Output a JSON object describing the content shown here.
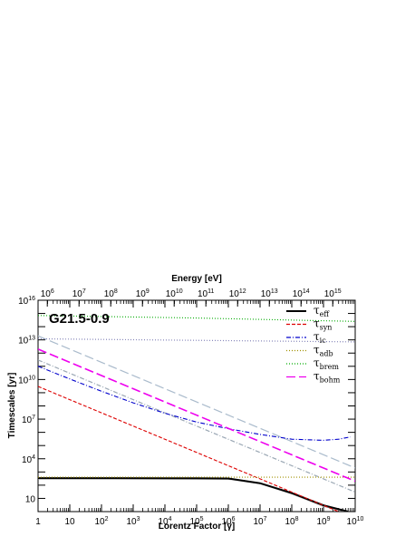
{
  "chart_data": {
    "type": "line",
    "title": "G21.5-0.9",
    "xlabel": "Lorentz Factor [γ]",
    "ylabel": "Timescales [yr]",
    "top_axis_label": "Energy [eV]",
    "x_scale": "log",
    "y_scale": "log",
    "xlim": [
      1,
      10000000000
    ],
    "ylim": [
      1,
      10000000000000000
    ],
    "x_tick_labels": [
      "1",
      "10",
      "10^2",
      "10^3",
      "10^4",
      "10^5",
      "10^6",
      "10^7",
      "10^8",
      "10^9",
      "10^10"
    ],
    "y_tick_labels": [
      "10",
      "10^4",
      "10^7",
      "10^10",
      "10^13",
      "10^16"
    ],
    "top_tick_labels": [
      "10^6",
      "10^7",
      "10^8",
      "10^9",
      "10^10",
      "10^11",
      "10^12",
      "10^13",
      "10^14",
      "10^15"
    ],
    "grid": false,
    "legend_position": "top-right",
    "series": [
      {
        "name": "eff",
        "color": "#000000",
        "style": "solid",
        "x": [
          1,
          10000,
          100000,
          1000000,
          10000000,
          100000000,
          1000000000,
          6000000000
        ],
        "y": [
          340,
          338,
          335,
          320,
          140,
          25,
          3,
          1
        ]
      },
      {
        "name": "syn",
        "color": "#dd0000",
        "style": "dashed",
        "x": [
          1,
          10,
          100,
          1000,
          10000,
          100000,
          1000000,
          10000000,
          100000000,
          1000000000,
          10000000000
        ],
        "y": [
          3000000000,
          300000000,
          30000000,
          3000000,
          300000,
          30000,
          3000,
          300,
          30,
          3,
          0.3
        ]
      },
      {
        "name": "ic",
        "color": "#0000cc",
        "style": "dash-dot",
        "x": [
          1,
          10,
          100,
          1000,
          10000,
          100000,
          1000000,
          10000000,
          100000000,
          1000000000,
          3000000000,
          7000000000
        ],
        "y": [
          100000000000,
          11000000000,
          1300000000,
          170000000,
          28000000,
          6000000,
          1900000,
          700000,
          300000,
          250000,
          300000,
          450000
        ]
      },
      {
        "name": "adb",
        "color": "#a09000",
        "style": "dotted",
        "x": [
          1,
          10000000000
        ],
        "y": [
          400,
          400
        ]
      },
      {
        "name": "brem",
        "color": "#00aa00",
        "style": "dotted",
        "x": [
          1,
          100000,
          1000000000,
          10000000000
        ],
        "y": [
          700000000000000,
          450000000000000,
          280000000000000,
          250000000000000
        ]
      },
      {
        "name": "bohm",
        "color": "#ee00ee",
        "style": "long-dashed",
        "x": [
          1,
          10000000000
        ],
        "y": [
          2000000000000,
          200
        ]
      }
    ],
    "extra_lines": [
      {
        "color": "#aabbcc",
        "style": "long-dashed",
        "x": [
          1,
          10000000000
        ],
        "y": [
          20000000000000,
          2000
        ]
      },
      {
        "color": "#9aa7b4",
        "style": "dash-dot",
        "x": [
          1,
          10000000000
        ],
        "y": [
          300000000000,
          30
        ]
      },
      {
        "color": "#8888bb",
        "style": "dotted",
        "x": [
          1,
          10000000000
        ],
        "y": [
          12000000000000,
          7000000000000
        ]
      },
      {
        "color": "#b0b0b0",
        "style": "solid",
        "x": [
          1,
          10000,
          1000000,
          10000000,
          100000000,
          1000000000,
          6000000000
        ],
        "y": [
          300,
          298,
          285,
          130,
          22,
          2.5,
          0.9
        ]
      }
    ]
  }
}
